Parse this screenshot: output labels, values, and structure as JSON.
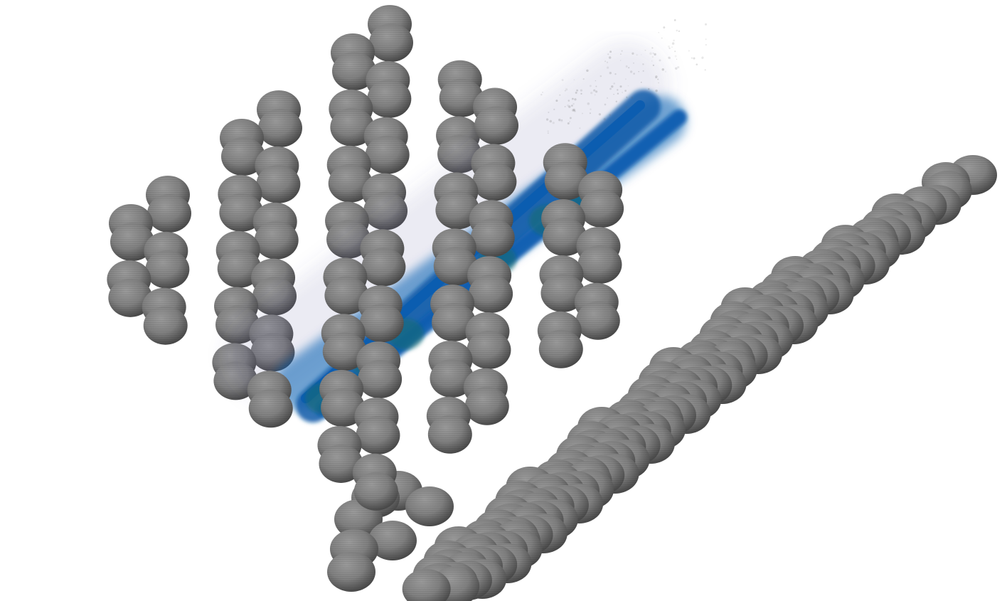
{
  "scene": {
    "background_color": "#ffffff",
    "sphere_color": "#808080",
    "sphere_highlight_color": "#9a9a9a",
    "sphere_shadow_color": "#4a4a4a",
    "density_color": "#0a5cb0",
    "density_core_color": "#0d5aa8",
    "density_edge_color": "#5a5aa0",
    "density_accent_color": "#0f6c6c"
  }
}
